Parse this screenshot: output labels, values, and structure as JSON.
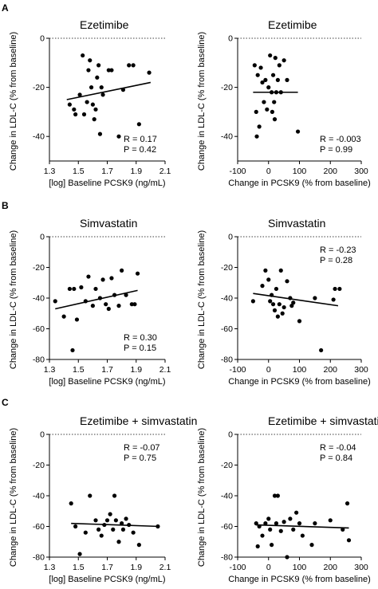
{
  "panel_letters": [
    "A",
    "B",
    "C"
  ],
  "chart_data": [
    {
      "type": "scatter",
      "panel": "A",
      "title": "Ezetimibe",
      "xlabel": "[log] Baseline PCSK9 (ng/mL)",
      "ylabel": "Change in LDL-C (% from baseline)",
      "xlim": [
        1.3,
        2.1
      ],
      "ylim": [
        -50,
        0
      ],
      "xticks": [
        "1.3",
        "1.5",
        "1.7",
        "1.9",
        "2.1"
      ],
      "yticks": [
        "0",
        "-20",
        "-40"
      ],
      "reference_line_y": 0,
      "stats": [
        "R = 0.17",
        "P = 0.42"
      ],
      "stats_position": "bottom-right",
      "fit": [
        [
          1.42,
          -25
        ],
        [
          2.0,
          -18
        ]
      ],
      "points": [
        [
          1.44,
          -27
        ],
        [
          1.47,
          -29
        ],
        [
          1.48,
          -31
        ],
        [
          1.51,
          -23
        ],
        [
          1.53,
          -7
        ],
        [
          1.54,
          -31
        ],
        [
          1.56,
          -26
        ],
        [
          1.57,
          -13
        ],
        [
          1.58,
          -9
        ],
        [
          1.59,
          -20
        ],
        [
          1.6,
          -27
        ],
        [
          1.61,
          -33
        ],
        [
          1.62,
          -29
        ],
        [
          1.63,
          -16
        ],
        [
          1.64,
          -11
        ],
        [
          1.65,
          -39
        ],
        [
          1.66,
          -20
        ],
        [
          1.67,
          -23
        ],
        [
          1.71,
          -13
        ],
        [
          1.73,
          -13
        ],
        [
          1.78,
          -40
        ],
        [
          1.81,
          -21
        ],
        [
          1.85,
          -11
        ],
        [
          1.88,
          -11
        ],
        [
          1.92,
          -35
        ],
        [
          1.99,
          -14
        ]
      ]
    },
    {
      "type": "scatter",
      "panel": "A",
      "title": "Ezetimibe",
      "xlabel": "Change in PCSK9 (% from baseline)",
      "ylabel": "Change in LDL-C (% from baseline)",
      "xlim": [
        -100,
        300
      ],
      "ylim": [
        -50,
        0
      ],
      "xticks": [
        "-100",
        "0",
        "100",
        "200",
        "300"
      ],
      "yticks": [
        "0",
        "-20",
        "-40"
      ],
      "reference_line_y": 0,
      "stats": [
        "R = -0.003",
        "P = 0.99"
      ],
      "stats_position": "bottom-right",
      "fit": [
        [
          -50,
          -22
        ],
        [
          95,
          -22
        ]
      ],
      "points": [
        [
          -45,
          -11
        ],
        [
          -40,
          -30
        ],
        [
          -38,
          -40
        ],
        [
          -35,
          -15
        ],
        [
          -30,
          -36
        ],
        [
          -25,
          -12
        ],
        [
          -20,
          -18
        ],
        [
          -15,
          -26
        ],
        [
          -10,
          -17
        ],
        [
          -5,
          -29
        ],
        [
          0,
          -20
        ],
        [
          5,
          -7
        ],
        [
          10,
          -22
        ],
        [
          12,
          -30
        ],
        [
          15,
          -15
        ],
        [
          18,
          -26
        ],
        [
          20,
          -33
        ],
        [
          22,
          -8
        ],
        [
          25,
          -22
        ],
        [
          30,
          -17
        ],
        [
          35,
          -11
        ],
        [
          40,
          -22
        ],
        [
          50,
          -9
        ],
        [
          60,
          -17
        ],
        [
          95,
          -38
        ]
      ]
    },
    {
      "type": "scatter",
      "panel": "B",
      "title": "Simvastatin",
      "xlabel": "[log] Baseline PCSK9 (ng/mL)",
      "ylabel": "Change in LDL-C (% from baseline)",
      "xlim": [
        1.3,
        2.1
      ],
      "ylim": [
        -80,
        0
      ],
      "xticks": [
        "1.3",
        "1.5",
        "1.7",
        "1.9",
        "2.1"
      ],
      "yticks": [
        "0",
        "-20",
        "-40",
        "-60",
        "-80"
      ],
      "reference_line_y": 0,
      "stats": [
        "R = 0.30",
        "P = 0.15"
      ],
      "stats_position": "bottom-right",
      "fit": [
        [
          1.34,
          -47
        ],
        [
          1.91,
          -35
        ]
      ],
      "points": [
        [
          1.34,
          -42
        ],
        [
          1.4,
          -52
        ],
        [
          1.44,
          -34
        ],
        [
          1.46,
          -74
        ],
        [
          1.47,
          -34
        ],
        [
          1.49,
          -54
        ],
        [
          1.52,
          -33
        ],
        [
          1.55,
          -42
        ],
        [
          1.57,
          -26
        ],
        [
          1.6,
          -45
        ],
        [
          1.62,
          -34
        ],
        [
          1.65,
          -40
        ],
        [
          1.67,
          -28
        ],
        [
          1.69,
          -44
        ],
        [
          1.71,
          -47
        ],
        [
          1.73,
          -27
        ],
        [
          1.75,
          -38
        ],
        [
          1.78,
          -45
        ],
        [
          1.8,
          -22
        ],
        [
          1.83,
          -38
        ],
        [
          1.87,
          -44
        ],
        [
          1.89,
          -44
        ],
        [
          1.91,
          -24
        ]
      ]
    },
    {
      "type": "scatter",
      "panel": "B",
      "title": "Simvastatin",
      "xlabel": "Change in PCSK9 (% from baseline)",
      "ylabel": "Change in LDL-C (% from baseline)",
      "xlim": [
        -100,
        300
      ],
      "ylim": [
        -80,
        0
      ],
      "xticks": [
        "-100",
        "0",
        "100",
        "200",
        "300"
      ],
      "yticks": [
        "0",
        "-20",
        "-40",
        "-60",
        "-80"
      ],
      "reference_line_y": 0,
      "stats": [
        "R = -0.23",
        "P = 0.28"
      ],
      "stats_position": "top-right",
      "fit": [
        [
          -50,
          -37
        ],
        [
          225,
          -45
        ]
      ],
      "points": [
        [
          -50,
          -42
        ],
        [
          -20,
          -32
        ],
        [
          -10,
          -22
        ],
        [
          0,
          -28
        ],
        [
          5,
          -42
        ],
        [
          10,
          -38
        ],
        [
          15,
          -44
        ],
        [
          20,
          -48
        ],
        [
          25,
          -34
        ],
        [
          30,
          -52
        ],
        [
          35,
          -44
        ],
        [
          40,
          -22
        ],
        [
          45,
          -50
        ],
        [
          50,
          -46
        ],
        [
          60,
          -29
        ],
        [
          70,
          -40
        ],
        [
          75,
          -45
        ],
        [
          80,
          -43
        ],
        [
          100,
          -55
        ],
        [
          150,
          -40
        ],
        [
          170,
          -74
        ],
        [
          210,
          -41
        ],
        [
          215,
          -34
        ],
        [
          230,
          -34
        ]
      ]
    },
    {
      "type": "scatter",
      "panel": "C",
      "title": "Ezetimibe + simvastatin",
      "xlabel": "[log] Baseline PCSK9 (ng/mL)",
      "ylabel": "Change in LDL-C (% from baseline)",
      "xlim": [
        1.3,
        2.1
      ],
      "ylim": [
        -80,
        0
      ],
      "xticks": [
        "1.3",
        "1.5",
        "1.7",
        "1.9",
        "2.1"
      ],
      "yticks": [
        "0",
        "-20",
        "-40",
        "-60",
        "-80"
      ],
      "reference_line_y": 0,
      "stats": [
        "R = -0.07",
        "P = 0.75"
      ],
      "stats_position": "top-right",
      "fit": [
        [
          1.45,
          -58
        ],
        [
          2.06,
          -60
        ]
      ],
      "points": [
        [
          1.45,
          -45
        ],
        [
          1.48,
          -60
        ],
        [
          1.51,
          -78
        ],
        [
          1.55,
          -64
        ],
        [
          1.58,
          -40
        ],
        [
          1.62,
          -56
        ],
        [
          1.64,
          -62
        ],
        [
          1.66,
          -66
        ],
        [
          1.68,
          -59
        ],
        [
          1.7,
          -56
        ],
        [
          1.72,
          -52
        ],
        [
          1.74,
          -62
        ],
        [
          1.75,
          -40
        ],
        [
          1.76,
          -56
        ],
        [
          1.78,
          -70
        ],
        [
          1.8,
          -58
        ],
        [
          1.81,
          -62
        ],
        [
          1.83,
          -55
        ],
        [
          1.85,
          -59
        ],
        [
          1.88,
          -64
        ],
        [
          1.92,
          -72
        ],
        [
          2.05,
          -60
        ]
      ]
    },
    {
      "type": "scatter",
      "panel": "C",
      "title": "Ezetimibe + simvastatin",
      "xlabel": "Change in PCSK9 (% from baseline)",
      "ylabel": "Change in LDL-C (% from baseline)",
      "xlim": [
        -100,
        300
      ],
      "ylim": [
        -80,
        0
      ],
      "xticks": [
        "-100",
        "0",
        "100",
        "200",
        "300"
      ],
      "yticks": [
        "0",
        "-20",
        "-40",
        "-60",
        "-80"
      ],
      "reference_line_y": 0,
      "stats": [
        "R = -0.04",
        "P = 0.84"
      ],
      "stats_position": "top-right",
      "fit": [
        [
          -40,
          -59
        ],
        [
          260,
          -61
        ]
      ],
      "points": [
        [
          -40,
          -58
        ],
        [
          -35,
          -73
        ],
        [
          -30,
          -60
        ],
        [
          -20,
          -66
        ],
        [
          -10,
          -58
        ],
        [
          0,
          -55
        ],
        [
          5,
          -62
        ],
        [
          10,
          -72
        ],
        [
          20,
          -40
        ],
        [
          25,
          -58
        ],
        [
          30,
          -40
        ],
        [
          40,
          -63
        ],
        [
          50,
          -57
        ],
        [
          60,
          -80
        ],
        [
          70,
          -55
        ],
        [
          80,
          -62
        ],
        [
          90,
          -51
        ],
        [
          100,
          -58
        ],
        [
          110,
          -66
        ],
        [
          140,
          -72
        ],
        [
          150,
          -58
        ],
        [
          200,
          -56
        ],
        [
          240,
          -62
        ],
        [
          255,
          -45
        ],
        [
          260,
          -69
        ]
      ]
    }
  ]
}
